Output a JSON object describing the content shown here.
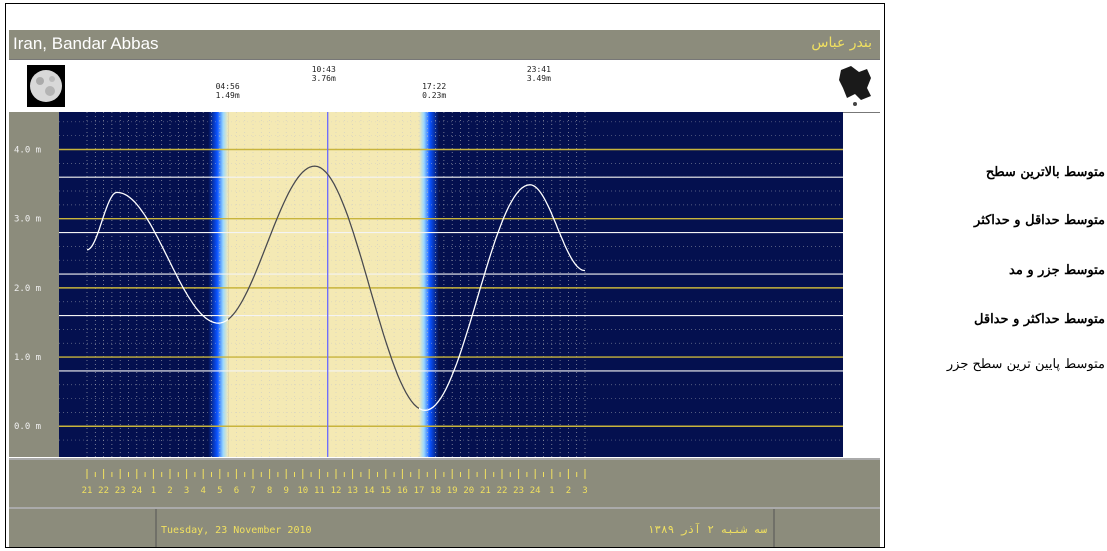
{
  "header": {
    "location_en": "Iran, Bandar Abbas",
    "location_fa": "بندر عباس"
  },
  "tide_events": [
    {
      "time": "04:56",
      "height": "1.49m"
    },
    {
      "time": "10:43",
      "height": "3.76m"
    },
    {
      "time": "17:22",
      "height": "0.23m"
    },
    {
      "time": "23:41",
      "height": "3.49m"
    }
  ],
  "icons": {
    "moon": "full-moon-icon",
    "map": "iran-map-icon"
  },
  "chart_data": {
    "type": "line",
    "x_ticks": [
      "21",
      "22",
      "23",
      "24",
      "1",
      "2",
      "3",
      "4",
      "5",
      "6",
      "7",
      "8",
      "9",
      "10",
      "11",
      "12",
      "13",
      "14",
      "15",
      "16",
      "17",
      "18",
      "19",
      "20",
      "21",
      "22",
      "23",
      "24",
      "1",
      "2",
      "3"
    ],
    "y_ticks": [
      "0.0 m",
      "1.0 m",
      "2.0 m",
      "3.0 m",
      "4.0 m"
    ],
    "ylim": [
      -0.3,
      4.6
    ],
    "series": [
      {
        "color": "#ffffff",
        "x": [
          -3,
          -1.2,
          4.93,
          10.72,
          17.37,
          23.68,
          27
        ],
        "y": [
          2.55,
          3.38,
          1.49,
          3.76,
          0.23,
          3.49,
          2.25
        ]
      }
    ],
    "reference_lines": [
      {
        "label": "MHHW",
        "value": 3.6
      },
      {
        "label": "MLHW",
        "value": 2.8
      },
      {
        "label": "ML",
        "value": 2.2
      },
      {
        "label": "MHLW",
        "value": 1.6
      },
      {
        "label": "MLLW",
        "value": 0.8
      }
    ],
    "yellow_lines": [
      0.0,
      1.0,
      2.0,
      3.0,
      4.0
    ],
    "daylight": {
      "start": 5.5,
      "end": 17.0
    },
    "current_time": 11.5,
    "colors": {
      "night": "#04104f",
      "day": "#f4e9b4",
      "twilight": "#0a52ff",
      "grid": "#c8c8c8",
      "level": "#c8b43c",
      "panel": "#8c8c7c"
    }
  },
  "footer": {
    "date_en": "Tuesday, 23 November 2010",
    "date_fa": "سه شنبه ۲ آذر ۱۳۸۹"
  },
  "legend_notes": [
    "متوسط بالاترین سطح",
    "متوسط حداقل و حداکثر",
    "متوسط جزر و مد",
    "متوسط حداکثر و حداقل",
    "متوسط پایین ترین سطح جزر"
  ]
}
